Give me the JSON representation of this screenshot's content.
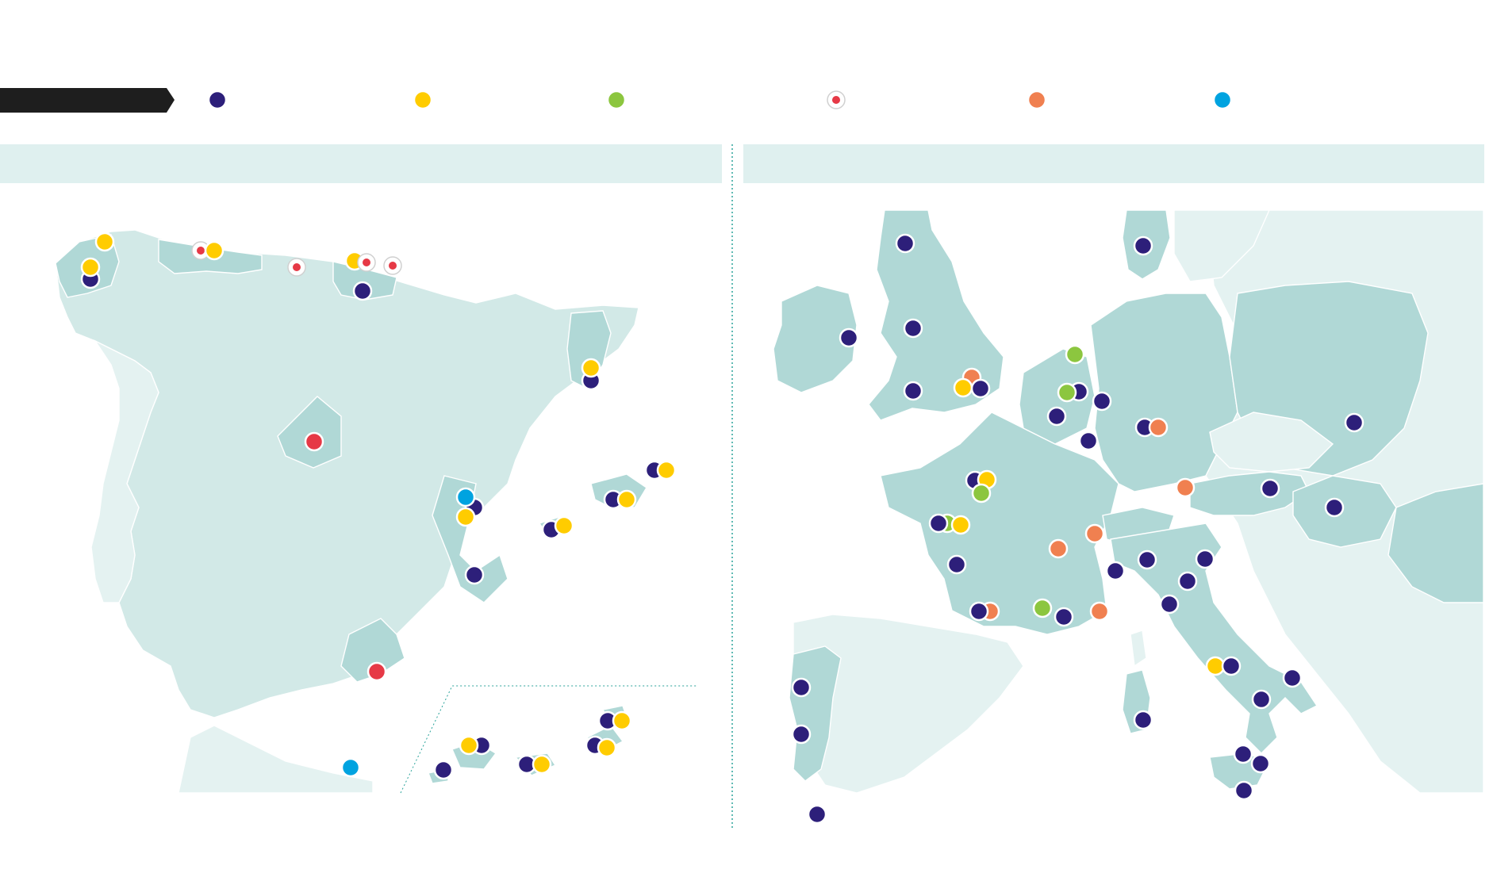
{
  "legend": {
    "title": "",
    "items": [
      {
        "key": "purple",
        "color": "#2d1f7a",
        "label": ""
      },
      {
        "key": "yellow",
        "color": "#ffcc00",
        "label": ""
      },
      {
        "key": "green",
        "color": "#8cc63f",
        "label": ""
      },
      {
        "key": "red-small",
        "color": "#e63946",
        "label": ""
      },
      {
        "key": "orange",
        "color": "#f08050",
        "label": ""
      },
      {
        "key": "blue",
        "color": "#00a3e0",
        "label": ""
      }
    ]
  },
  "panels": {
    "spain": {
      "title": ""
    },
    "europe": {
      "title": ""
    }
  },
  "colors": {
    "land_light": "#d2e9e7",
    "land_highlight": "#b0d8d6",
    "land_pale": "#e4f2f1",
    "header_band": "#dff0ef",
    "divider": "#2aa39a",
    "legend_bar": "#1e1e1e"
  }
}
